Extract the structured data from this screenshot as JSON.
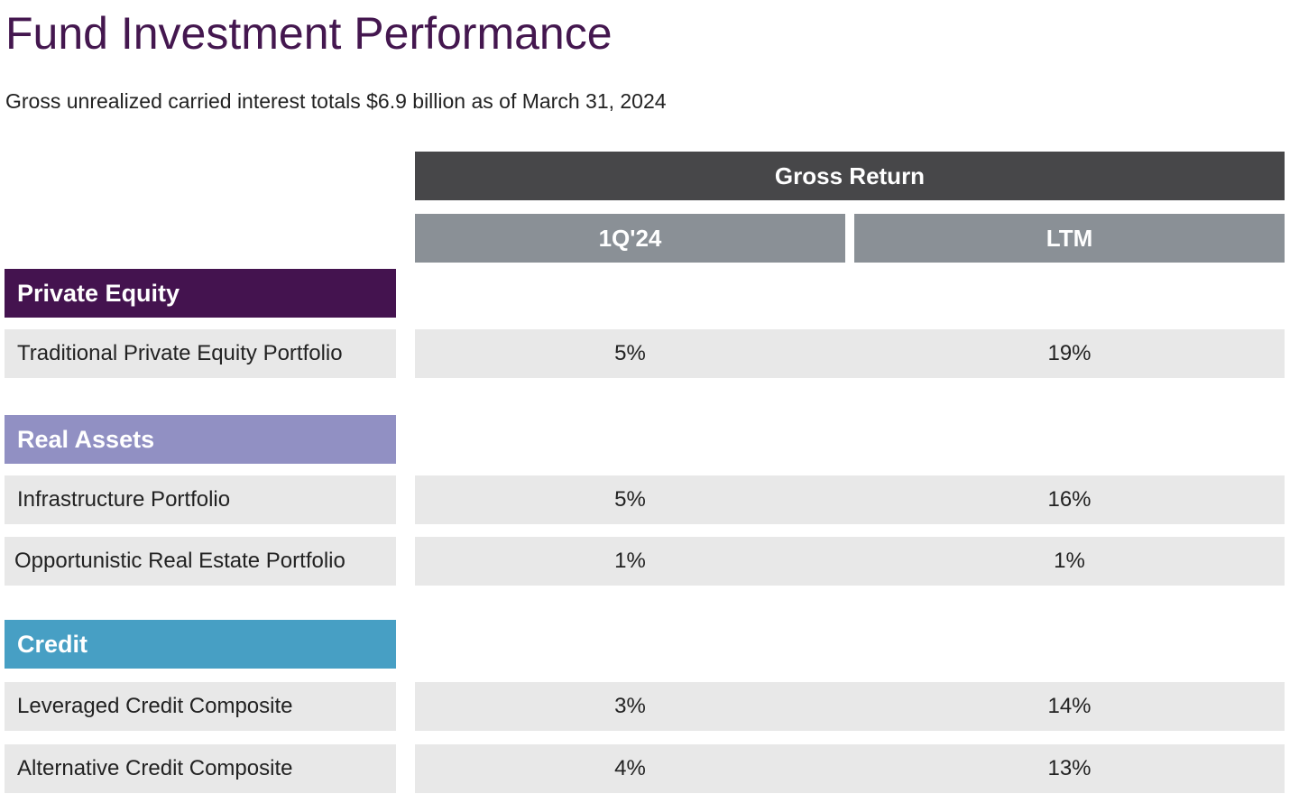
{
  "title": "Fund Investment Performance",
  "subtitle": "Gross unrealized carried interest totals $6.9 billion as of March 31, 2024",
  "table": {
    "group_header": "Gross Return",
    "columns": [
      "1Q'24",
      "LTM"
    ],
    "sections": [
      {
        "name": "Private Equity",
        "color": "#44134f",
        "rows": [
          {
            "label": "Traditional Private Equity Portfolio",
            "q1_24": "5%",
            "ltm": "19%"
          }
        ]
      },
      {
        "name": "Real Assets",
        "color": "#9190c3",
        "rows": [
          {
            "label": "Infrastructure Portfolio",
            "q1_24": "5%",
            "ltm": "16%"
          },
          {
            "label": "Opportunistic Real Estate Portfolio",
            "q1_24": "1%",
            "ltm": "1%"
          }
        ]
      },
      {
        "name": "Credit",
        "color": "#479fc4",
        "rows": [
          {
            "label": "Leveraged Credit Composite",
            "q1_24": "3%",
            "ltm": "14%"
          },
          {
            "label": "Alternative Credit Composite",
            "q1_24": "4%",
            "ltm": "13%"
          }
        ]
      }
    ]
  },
  "colors": {
    "title": "#44174f",
    "header_dark": "#474749",
    "header_grey": "#8a9096",
    "row_bg": "#e8e8e8"
  }
}
